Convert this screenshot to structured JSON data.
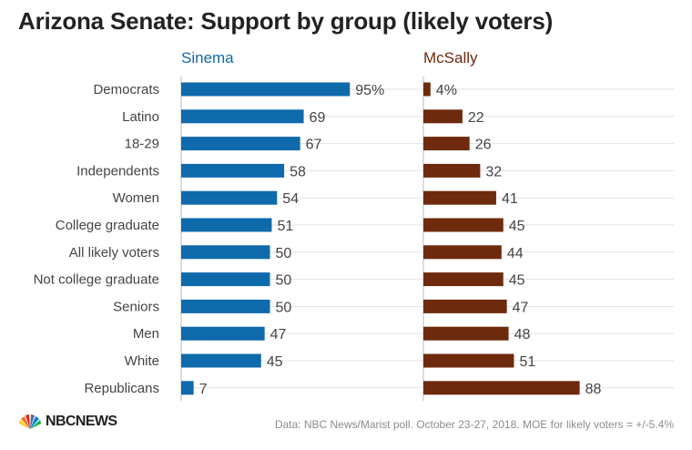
{
  "title": "Arizona Senate: Support by group (likely voters)",
  "source": "Data: NBC News/Marist poll. October 23-27, 2018. MOE for likely voters = +/-5.4%",
  "logo": {
    "text": "NBCNEWS",
    "icon": "nbc-peacock-icon"
  },
  "colors": {
    "sinema": "#0f6aac",
    "mcsally": "#6e2a0d",
    "grid": "#e2e2e2",
    "label": "#444444"
  },
  "chart_data": {
    "type": "bar",
    "orientation": "horizontal",
    "categories": [
      "Democrats",
      "Latino",
      "18-29",
      "Independents",
      "Women",
      "College graduate",
      "All likely voters",
      "Not college graduate",
      "Seniors",
      "Men",
      "White",
      "Republicans"
    ],
    "series": [
      {
        "name": "Sinema",
        "values": [
          95,
          69,
          67,
          58,
          54,
          51,
          50,
          50,
          50,
          47,
          45,
          7
        ],
        "labels": [
          "95%",
          "69",
          "67",
          "58",
          "54",
          "51",
          "50",
          "50",
          "50",
          "47",
          "45",
          "7"
        ]
      },
      {
        "name": "McSally",
        "values": [
          4,
          22,
          26,
          32,
          41,
          45,
          44,
          45,
          47,
          48,
          51,
          88
        ],
        "labels": [
          "4%",
          "22",
          "26",
          "32",
          "41",
          "45",
          "44",
          "45",
          "47",
          "48",
          "51",
          "88"
        ]
      }
    ],
    "grid": true
  }
}
